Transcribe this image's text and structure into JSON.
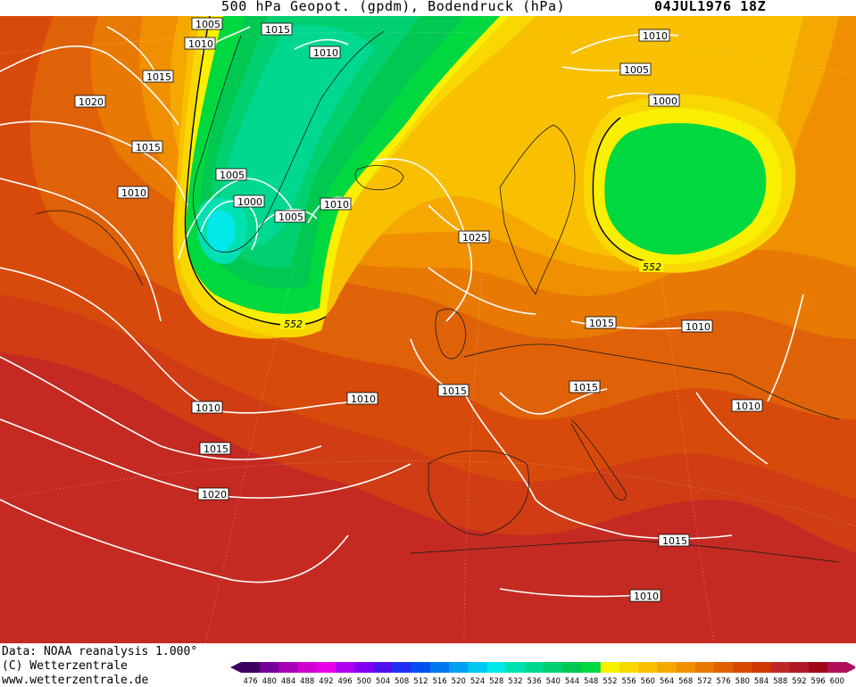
{
  "header": {
    "title": "500 hPa Geopot. (gpdm), Bodendruck (hPa)",
    "date": "04JUL1976 18Z"
  },
  "footer": {
    "credit_data": "Data: NOAA reanalysis 1.000°",
    "credit_copyright": "(C) Wetterzentrale",
    "credit_url": "www.wetterzentrale.de"
  },
  "legend": {
    "levels": [
      "476",
      "480",
      "484",
      "488",
      "492",
      "496",
      "500",
      "504",
      "508",
      "512",
      "516",
      "520",
      "524",
      "528",
      "532",
      "536",
      "540",
      "544",
      "548",
      "552",
      "556",
      "560",
      "564",
      "568",
      "572",
      "576",
      "580",
      "584",
      "588",
      "592",
      "596",
      "600"
    ],
    "colors": [
      "#3c0060",
      "#78009a",
      "#a800b8",
      "#d000d0",
      "#e800e8",
      "#b000f0",
      "#8000f0",
      "#5010f0",
      "#2030f0",
      "#0050f0",
      "#0078f0",
      "#00a0f0",
      "#00c8f0",
      "#00e8e8",
      "#00e0b0",
      "#00d890",
      "#00d070",
      "#00c850",
      "#00d840",
      "#f8f000",
      "#f8d800",
      "#f8c000",
      "#f4a800",
      "#f09000",
      "#e87800",
      "#e06000",
      "#d84800",
      "#d03800",
      "#c02828",
      "#b01828",
      "#a00818",
      "#b0105a"
    ]
  },
  "pressure_labels": [
    {
      "text": "1005"
    },
    {
      "text": "1015"
    },
    {
      "text": "1010"
    },
    {
      "text": "1010"
    },
    {
      "text": "1015"
    },
    {
      "text": "1020"
    },
    {
      "text": "1015"
    },
    {
      "text": "1010"
    },
    {
      "text": "1005"
    },
    {
      "text": "1000"
    },
    {
      "text": "1005"
    },
    {
      "text": "1010"
    },
    {
      "text": "1025"
    },
    {
      "text": "1010"
    },
    {
      "text": "1005"
    },
    {
      "text": "1000"
    },
    {
      "text": "1015"
    },
    {
      "text": "1010"
    },
    {
      "text": "1015"
    },
    {
      "text": "1015"
    },
    {
      "text": "1010"
    },
    {
      "text": "1010"
    },
    {
      "text": "1015"
    },
    {
      "text": "1020"
    },
    {
      "text": "1010"
    },
    {
      "text": "1010"
    },
    {
      "text": "1015"
    },
    {
      "text": "1010"
    }
  ],
  "geopotential_labels": [
    {
      "text": "552"
    },
    {
      "text": "552"
    }
  ]
}
